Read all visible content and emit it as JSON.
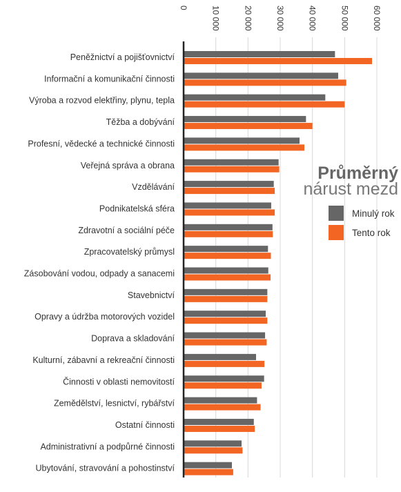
{
  "chart_data": {
    "type": "bar",
    "orientation": "horizontal",
    "title_line1": "Průměrný",
    "title_line2": "nárust mezd",
    "xlim": [
      0,
      60000
    ],
    "ticks": [
      0,
      10000,
      20000,
      30000,
      40000,
      50000,
      60000
    ],
    "tick_labels": [
      "0",
      "10 000",
      "20 000",
      "30 000",
      "40 000",
      "50 000",
      "60 000"
    ],
    "grid": true,
    "legend_position": "right",
    "colors": {
      "series0": "#666666",
      "series1": "#f26522"
    },
    "categories": [
      "Peněžnictví a pojišťovnictví",
      "Informační a komunikační činnosti",
      "Výroba a rozvod elektřiny, plynu, tepla",
      "Těžba a dobývání",
      "Profesní, vědecké a technické činnosti",
      "Veřejná správa a obrana",
      "Vzdělávání",
      "Podnikatelská sféra",
      "Zdravotní a sociální péče",
      "Zpracovatelský průmysl",
      "Zásobování vodou, odpady a sanacemi",
      "Stavebnictví",
      "Opravy a údržba motorových vozidel",
      "Doprava a skladování",
      "Kulturní, zábavní a rekreační činnosti",
      "Činnosti v oblasti nemovitostí",
      "Zemědělství, lesnictví, rybářství",
      "Ostatní činnosti",
      "Administrativní a podpůrné činnosti",
      "Ubytování, stravování a pohostinství"
    ],
    "series": [
      {
        "name": "Minulý rok",
        "values": [
          47000,
          48000,
          44000,
          38000,
          36000,
          29500,
          28000,
          27200,
          27600,
          26200,
          26300,
          26000,
          25500,
          25300,
          22500,
          25000,
          22800,
          21800,
          18000,
          15000
        ]
      },
      {
        "name": "Tento rok",
        "values": [
          58500,
          50500,
          50000,
          40000,
          37500,
          29700,
          28300,
          28300,
          27700,
          27100,
          27000,
          26000,
          26000,
          25800,
          25100,
          24200,
          23900,
          22100,
          18300,
          15400
        ]
      }
    ]
  }
}
